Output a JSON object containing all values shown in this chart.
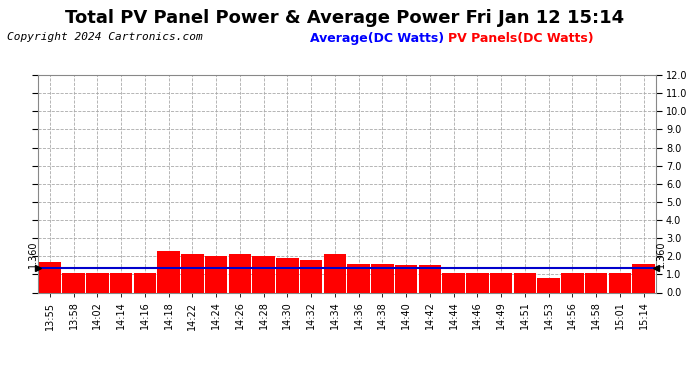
{
  "title": "Total PV Panel Power & Average Power Fri Jan 12 15:14",
  "copyright": "Copyright 2024 Cartronics.com",
  "legend_average": "Average(DC Watts)",
  "legend_panels": "PV Panels(DC Watts)",
  "legend_average_color": "#0000ff",
  "legend_panels_color": "#ff0000",
  "ylim": [
    0.0,
    12.0
  ],
  "yticks": [
    0.0,
    1.0,
    2.0,
    3.0,
    4.0,
    5.0,
    6.0,
    7.0,
    8.0,
    9.0,
    10.0,
    11.0,
    12.0
  ],
  "average_value": 1.36,
  "average_label": "1.360",
  "background_color": "#ffffff",
  "plot_bg_color": "#ffffff",
  "grid_color": "#aaaaaa",
  "bar_color": "#ff0000",
  "avg_line_color": "#0000cc",
  "x_labels": [
    "13:55",
    "13:58",
    "14:02",
    "14:14",
    "14:16",
    "14:18",
    "14:22",
    "14:24",
    "14:26",
    "14:28",
    "14:30",
    "14:32",
    "14:34",
    "14:36",
    "14:38",
    "14:40",
    "14:42",
    "14:44",
    "14:46",
    "14:49",
    "14:51",
    "14:53",
    "14:56",
    "14:58",
    "15:01",
    "15:14"
  ],
  "bar_values": [
    1.7,
    1.1,
    1.1,
    1.1,
    1.1,
    2.3,
    2.1,
    2.0,
    2.1,
    2.0,
    1.9,
    1.8,
    2.1,
    1.6,
    1.6,
    1.5,
    1.5,
    1.1,
    1.1,
    1.1,
    1.1,
    0.8,
    1.1,
    1.1,
    1.1,
    1.6
  ],
  "title_fontsize": 13,
  "copyright_fontsize": 8,
  "tick_fontsize": 7,
  "legend_fontsize": 9
}
